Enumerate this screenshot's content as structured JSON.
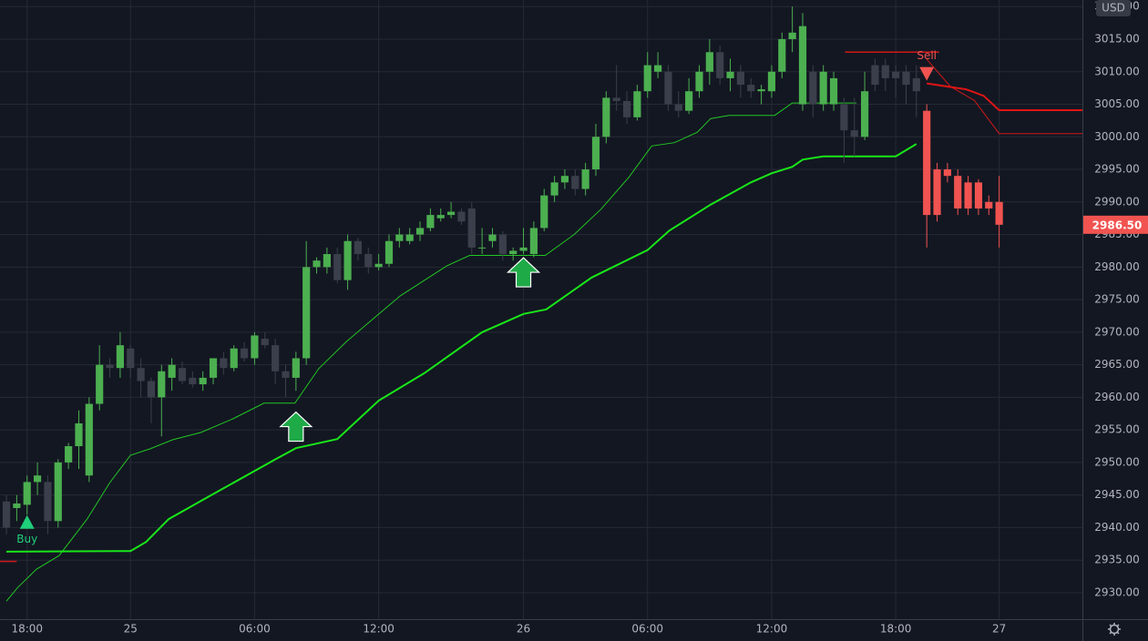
{
  "chart_data": {
    "type": "candlestick",
    "currency": "USD",
    "background": "#131722",
    "grid_color": "#262a35",
    "text_color": "#b2b5be",
    "up_color": "#4caf50",
    "down_color": "#3b3f4b",
    "down_color_after_sell": "#f05350",
    "xlim": [
      -0.62,
      104.05
    ],
    "ylim": [
      2925.94,
      3021.01
    ],
    "xticks": [
      {
        "value": 2,
        "label": "18:00"
      },
      {
        "value": 12,
        "label": "25"
      },
      {
        "value": 24,
        "label": "06:00"
      },
      {
        "value": 36,
        "label": "12:00"
      },
      {
        "value": 50,
        "label": "26"
      },
      {
        "value": 62,
        "label": "06:00"
      },
      {
        "value": 74,
        "label": "12:00"
      },
      {
        "value": 86,
        "label": "18:00"
      },
      {
        "value": 96,
        "label": "27"
      }
    ],
    "yticks": [
      {
        "value": 2930,
        "label": "2930.00"
      },
      {
        "value": 2935,
        "label": "2935.00"
      },
      {
        "value": 2940,
        "label": "2940.00"
      },
      {
        "value": 2945,
        "label": "2945.00"
      },
      {
        "value": 2950,
        "label": "2950.00"
      },
      {
        "value": 2955,
        "label": "2955.00"
      },
      {
        "value": 2960,
        "label": "2960.00"
      },
      {
        "value": 2965,
        "label": "2965.00"
      },
      {
        "value": 2970,
        "label": "2970.00"
      },
      {
        "value": 2975,
        "label": "2975.00"
      },
      {
        "value": 2980,
        "label": "2980.00"
      },
      {
        "value": 2985,
        "label": "2985.00"
      },
      {
        "value": 2990,
        "label": "2990.00"
      },
      {
        "value": 2995,
        "label": "2995.00"
      },
      {
        "value": 3000,
        "label": "3000.00"
      },
      {
        "value": 3005,
        "label": "3005.00"
      },
      {
        "value": 3010,
        "label": "3010.00"
      },
      {
        "value": 3015,
        "label": "3015.00"
      },
      {
        "value": 3020,
        "label": "3020.00"
      }
    ],
    "open": [
      2944,
      2943,
      2943.5,
      2947,
      2947,
      2941,
      2950,
      2952.5,
      2948,
      2959,
      2965,
      2964.5,
      2967.5,
      2964.5,
      2962.5,
      2960,
      2963,
      2964.5,
      2963,
      2962,
      2963,
      2966,
      2964.5,
      2967.5,
      2966,
      2969,
      2968,
      2964,
      2963,
      2966,
      2980,
      2980,
      2982,
      2978,
      2984,
      2982,
      2980,
      2980.5,
      2984,
      2984,
      2985,
      2986,
      2987.5,
      2988,
      2988.5,
      2989,
      2983,
      2984,
      2985,
      2982,
      2982.5,
      2982,
      2986,
      2991,
      2993,
      2994,
      2992,
      2995,
      3000,
      3006,
      3005.5,
      3003,
      3007,
      3010,
      3010,
      3005,
      3004,
      3007,
      3010,
      3013,
      3009,
      3010,
      3008,
      3007,
      3007,
      3010,
      3015,
      3005,
      3010,
      3005,
      3005,
      3005,
      3001,
      3000,
      3011,
      3011,
      3010,
      3010,
      3009,
      3004,
      2995,
      2995,
      2994,
      2993,
      2993,
      2990,
      2990
    ],
    "high": [
      2945,
      2945,
      2948,
      2950,
      2948,
      2950.5,
      2953,
      2958,
      2960,
      2968,
      2966,
      2970,
      2968,
      2966,
      2963,
      2965,
      2966,
      2965.5,
      2964,
      2964,
      2966,
      2967,
      2968,
      2968.5,
      2970,
      2970,
      2969,
      2965,
      2967,
      2984,
      2981.5,
      2983,
      2983,
      2985,
      2984.5,
      2983,
      2982,
      2985,
      2986,
      2986,
      2987,
      2989,
      2989,
      2990,
      2989,
      2990,
      2986,
      2986,
      2985.5,
      2983,
      2986,
      2987,
      2992,
      2994,
      2995,
      2995,
      2996,
      3002,
      3007,
      3011,
      3007,
      3008,
      3013,
      3013,
      3011,
      3007,
      3009,
      3011,
      3015,
      3014,
      3012,
      3011,
      3009,
      3008,
      3011,
      3016,
      3020,
      3019,
      3011,
      3011,
      3010,
      3006,
      3006,
      3010,
      3012,
      3012,
      3011,
      3011,
      3011,
      3005,
      2996,
      2996,
      2995,
      2994,
      2993.5,
      2991,
      2994
    ],
    "low": [
      2939,
      2941,
      2942,
      2945,
      2939,
      2940,
      2949,
      2949,
      2947,
      2958,
      2963,
      2963,
      2963,
      2960,
      2956,
      2954,
      2961,
      2962,
      2961.5,
      2961,
      2962,
      2963.5,
      2964,
      2965.5,
      2965,
      2967.5,
      2962,
      2960,
      2961,
      2965,
      2979,
      2979,
      2977.5,
      2976.5,
      2981,
      2979,
      2979.5,
      2980,
      2983,
      2983.5,
      2984,
      2985.5,
      2987,
      2987.5,
      2986.5,
      2982,
      2982,
      2983,
      2981,
      2981,
      2982,
      2981.5,
      2985.5,
      2990,
      2992,
      2991,
      2991,
      2994,
      2999,
      3004,
      3002,
      3002.5,
      3006,
      3009,
      3004,
      3003,
      3003.5,
      3006,
      3008,
      3008,
      3007,
      3006,
      3006,
      3005,
      3006,
      3009,
      3013,
      3004,
      3003,
      3004,
      3004,
      2996,
      2997,
      2999.5,
      3007,
      3007,
      3006,
      3005,
      3003,
      2983,
      2987,
      2993,
      2988,
      2988,
      2988,
      2988,
      2983
    ],
    "close": [
      2940,
      2943.7,
      2947,
      2948,
      2941,
      2950,
      2952.5,
      2956,
      2959,
      2965,
      2964.5,
      2968,
      2964.5,
      2962.5,
      2960,
      2964,
      2965,
      2962.5,
      2962,
      2963,
      2966,
      2964.5,
      2967.5,
      2966,
      2969.5,
      2968,
      2964,
      2963,
      2966,
      2980,
      2981,
      2982,
      2978,
      2984,
      2982,
      2980,
      2980.5,
      2984,
      2985,
      2985,
      2986,
      2988,
      2988,
      2988.5,
      2987,
      2983,
      2983,
      2985,
      2982,
      2982.5,
      2983,
      2986,
      2991,
      2993,
      2994,
      2992,
      2995,
      3000,
      3006,
      3005.5,
      3003,
      3007,
      3011,
      3011,
      3005,
      3004,
      3007,
      3010,
      3013,
      3009,
      3010,
      3008,
      3007,
      3007.3,
      3010,
      3015,
      3016,
      3017,
      3005,
      3010,
      3009,
      3001,
      3000,
      3007,
      3008,
      3009,
      3009,
      3008,
      3007,
      2988,
      2988,
      2994,
      2989,
      2989,
      2989,
      2989,
      2986.5
    ],
    "lines": [
      {
        "color": "#22c622",
        "width": 1,
        "x": [
          0,
          1.1,
          2.9,
          5.1,
          7.8,
          10,
          12,
          13.9,
          16.1,
          18.8,
          21.9,
          24.9,
          27.9,
          30.2,
          32.9,
          35.5,
          38.1,
          42.6,
          44.8,
          52.1,
          54.9,
          57.5,
          60.2,
          62.4,
          64.6,
          66.8,
          68.1,
          69.9,
          74.3,
          76,
          82.2
        ],
        "values": [
          2928.7,
          2930.8,
          2933.6,
          2935.7,
          2941.3,
          2946.9,
          2951.1,
          2952.1,
          2953.5,
          2954.6,
          2956.7,
          2959.1,
          2959.1,
          2964.4,
          2968.6,
          2972.1,
          2975.6,
          2980.2,
          2981.8,
          2981.8,
          2985,
          2988.9,
          2993.8,
          2998.6,
          2999.1,
          3000.7,
          3002.8,
          3003.3,
          3003.3,
          3005.2,
          3005.2
        ]
      },
      {
        "color": "#19e619",
        "width": 2,
        "x": [
          0,
          12,
          13.5,
          15.7,
          19.6,
          25.8,
          28,
          32,
          36,
          40.4,
          46,
          50,
          52.2,
          56.6,
          62,
          64.1,
          68.1,
          72,
          74,
          76,
          77,
          79,
          86,
          88
        ],
        "values": [
          2936.3,
          2936.4,
          2937.8,
          2941.3,
          2944.8,
          2950.3,
          2952.2,
          2953.6,
          2959.5,
          2963.7,
          2970,
          2972.8,
          2973.5,
          2978.4,
          2982.6,
          2985.6,
          2989.6,
          2993,
          2994.4,
          2995.4,
          2996.5,
          2997,
          2997,
          2998.9
        ]
      },
      {
        "color": "#d01818",
        "width": 1,
        "x": [
          89,
          91.3,
          93.6,
          96,
          104.05
        ],
        "values": [
          3011.9,
          3007.7,
          3005.6,
          3000.5,
          3000.5
        ]
      },
      {
        "color": "#e01515",
        "width": 2,
        "x": [
          89,
          92.8,
          94.5,
          96,
          104.05
        ],
        "values": [
          3008.2,
          3007.3,
          3006.3,
          3004.1,
          3004.1
        ]
      }
    ],
    "levels": [
      {
        "color": "#d01818",
        "x": [
          81.1,
          90.2
        ],
        "value": 3013
      },
      {
        "color": "#d01818",
        "x": [
          -0.62,
          1
        ],
        "value": 2934.8
      }
    ],
    "signals": [
      {
        "label": "Buy",
        "x": 2,
        "value": 2940.8,
        "color": "#1fcf7a",
        "direction": "up"
      },
      {
        "label": "Sell",
        "x": 89,
        "value": 3009.6,
        "color": "#f05350",
        "direction": "down"
      }
    ],
    "arrows": [
      {
        "x": 28,
        "value": 2955.5,
        "color": "#1faa48"
      },
      {
        "x": 50,
        "value": 2979.2,
        "color": "#1faa48"
      }
    ],
    "last_price": {
      "value": 2986.5,
      "label": "2986.50",
      "color": "#f05350"
    }
  }
}
